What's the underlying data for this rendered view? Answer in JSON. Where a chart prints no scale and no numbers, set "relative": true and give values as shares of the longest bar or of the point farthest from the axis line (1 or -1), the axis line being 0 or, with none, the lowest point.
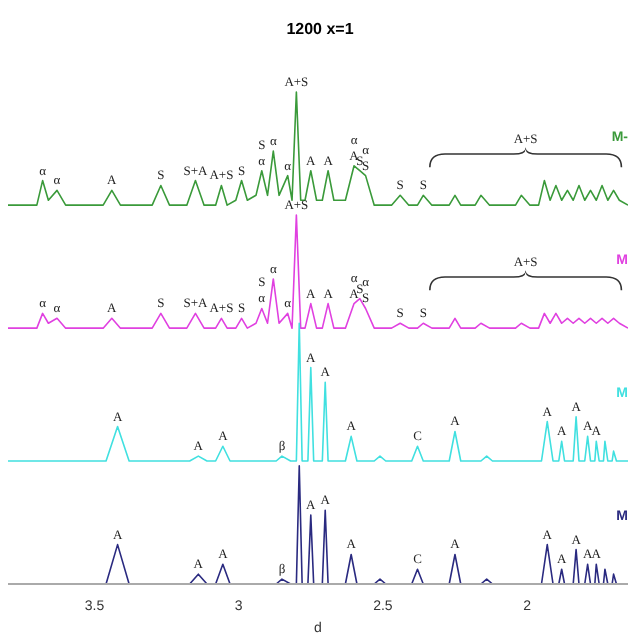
{
  "chart_data": {
    "type": "line",
    "title": "1200 x=1",
    "xlabel": "d",
    "relative": true,
    "xlim": [
      3.8,
      1.65
    ],
    "xticks": [
      3.5,
      3,
      2.5,
      2
    ],
    "marker": "none",
    "line_style": "solid",
    "series": [
      {
        "name": "M-",
        "color": "#3a9a3a",
        "x": [
          3.8,
          3.7,
          3.68,
          3.66,
          3.63,
          3.6,
          3.47,
          3.44,
          3.41,
          3.3,
          3.27,
          3.24,
          3.18,
          3.15,
          3.12,
          3.08,
          3.06,
          3.04,
          3.01,
          2.99,
          2.97,
          2.94,
          2.92,
          2.9,
          2.88,
          2.86,
          2.83,
          2.815,
          2.8,
          2.785,
          2.77,
          2.75,
          2.73,
          2.71,
          2.69,
          2.67,
          2.63,
          2.6,
          2.58,
          2.56,
          2.53,
          2.47,
          2.44,
          2.41,
          2.38,
          2.36,
          2.33,
          2.27,
          2.25,
          2.23,
          2.18,
          2.16,
          2.13,
          2.04,
          2.02,
          1.99,
          1.96,
          1.94,
          1.92,
          1.9,
          1.88,
          1.86,
          1.84,
          1.82,
          1.8,
          1.78,
          1.76,
          1.74,
          1.72,
          1.7,
          1.68,
          1.65
        ],
        "values": [
          0.77,
          0.77,
          0.82,
          0.78,
          0.8,
          0.77,
          0.77,
          0.8,
          0.77,
          0.77,
          0.81,
          0.77,
          0.77,
          0.82,
          0.77,
          0.77,
          0.81,
          0.77,
          0.78,
          0.82,
          0.78,
          0.79,
          0.84,
          0.79,
          0.88,
          0.79,
          0.83,
          0.78,
          1.0,
          0.78,
          0.78,
          0.84,
          0.78,
          0.78,
          0.84,
          0.78,
          0.78,
          0.85,
          0.84,
          0.83,
          0.77,
          0.77,
          0.79,
          0.77,
          0.77,
          0.79,
          0.77,
          0.77,
          0.79,
          0.77,
          0.77,
          0.79,
          0.77,
          0.77,
          0.79,
          0.77,
          0.77,
          0.82,
          0.78,
          0.81,
          0.78,
          0.8,
          0.78,
          0.81,
          0.78,
          0.8,
          0.78,
          0.81,
          0.78,
          0.8,
          0.78,
          0.77
        ]
      },
      {
        "name": "M",
        "color": "#e040e0",
        "x": [
          3.8,
          3.7,
          3.68,
          3.66,
          3.63,
          3.6,
          3.47,
          3.44,
          3.41,
          3.3,
          3.27,
          3.24,
          3.18,
          3.15,
          3.12,
          3.08,
          3.06,
          3.04,
          3.01,
          2.99,
          2.97,
          2.94,
          2.92,
          2.9,
          2.88,
          2.86,
          2.83,
          2.815,
          2.8,
          2.785,
          2.77,
          2.75,
          2.73,
          2.71,
          2.69,
          2.67,
          2.63,
          2.6,
          2.58,
          2.56,
          2.53,
          2.47,
          2.44,
          2.41,
          2.38,
          2.36,
          2.33,
          2.27,
          2.25,
          2.23,
          2.18,
          2.16,
          2.13,
          2.04,
          2.02,
          1.99,
          1.96,
          1.94,
          1.92,
          1.9,
          1.88,
          1.86,
          1.84,
          1.82,
          1.8,
          1.78,
          1.76,
          1.74,
          1.72,
          1.7,
          1.68,
          1.65
        ],
        "values": [
          0.52,
          0.52,
          0.55,
          0.53,
          0.54,
          0.52,
          0.52,
          0.54,
          0.52,
          0.52,
          0.55,
          0.52,
          0.52,
          0.55,
          0.52,
          0.52,
          0.54,
          0.52,
          0.52,
          0.54,
          0.52,
          0.53,
          0.56,
          0.53,
          0.62,
          0.53,
          0.55,
          0.52,
          0.75,
          0.52,
          0.52,
          0.57,
          0.52,
          0.52,
          0.57,
          0.52,
          0.52,
          0.57,
          0.58,
          0.56,
          0.52,
          0.52,
          0.53,
          0.52,
          0.52,
          0.53,
          0.52,
          0.52,
          0.54,
          0.52,
          0.52,
          0.53,
          0.52,
          0.52,
          0.53,
          0.52,
          0.52,
          0.55,
          0.53,
          0.55,
          0.53,
          0.54,
          0.53,
          0.54,
          0.53,
          0.54,
          0.53,
          0.54,
          0.53,
          0.54,
          0.53,
          0.52
        ]
      },
      {
        "name": "M",
        "color": "#40e0e0",
        "x": [
          3.8,
          3.46,
          3.42,
          3.38,
          3.17,
          3.14,
          3.11,
          3.08,
          3.055,
          3.03,
          2.87,
          2.85,
          2.82,
          2.8,
          2.79,
          2.78,
          2.76,
          2.75,
          2.74,
          2.71,
          2.7,
          2.69,
          2.63,
          2.61,
          2.59,
          2.53,
          2.51,
          2.49,
          2.4,
          2.38,
          2.36,
          2.27,
          2.25,
          2.23,
          2.16,
          2.14,
          2.12,
          1.95,
          1.93,
          1.91,
          1.89,
          1.88,
          1.87,
          1.84,
          1.83,
          1.82,
          1.8,
          1.79,
          1.78,
          1.765,
          1.76,
          1.75,
          1.735,
          1.73,
          1.72,
          1.705,
          1.7,
          1.69,
          1.65
        ],
        "values": [
          0.25,
          0.25,
          0.32,
          0.25,
          0.25,
          0.26,
          0.25,
          0.25,
          0.28,
          0.25,
          0.25,
          0.26,
          0.25,
          0.25,
          0.53,
          0.25,
          0.25,
          0.44,
          0.25,
          0.25,
          0.41,
          0.25,
          0.25,
          0.3,
          0.25,
          0.25,
          0.26,
          0.25,
          0.25,
          0.28,
          0.25,
          0.25,
          0.31,
          0.25,
          0.25,
          0.26,
          0.25,
          0.25,
          0.33,
          0.25,
          0.25,
          0.29,
          0.25,
          0.25,
          0.34,
          0.25,
          0.25,
          0.3,
          0.25,
          0.25,
          0.29,
          0.25,
          0.25,
          0.29,
          0.25,
          0.25,
          0.27,
          0.25,
          0.25
        ]
      },
      {
        "name": "M",
        "color": "#2a2a80",
        "x": [
          3.8,
          3.46,
          3.42,
          3.38,
          3.17,
          3.14,
          3.11,
          3.08,
          3.055,
          3.03,
          2.87,
          2.85,
          2.82,
          2.8,
          2.79,
          2.78,
          2.76,
          2.75,
          2.74,
          2.71,
          2.7,
          2.69,
          2.63,
          2.61,
          2.59,
          2.53,
          2.51,
          2.49,
          2.4,
          2.38,
          2.36,
          2.27,
          2.25,
          2.23,
          2.16,
          2.14,
          2.12,
          1.95,
          1.93,
          1.91,
          1.89,
          1.88,
          1.87,
          1.84,
          1.83,
          1.82,
          1.8,
          1.79,
          1.78,
          1.765,
          1.76,
          1.75,
          1.735,
          1.73,
          1.72,
          1.705,
          1.7,
          1.69,
          1.65
        ],
        "values": [
          0,
          0,
          0.08,
          0,
          0,
          0.02,
          0,
          0,
          0.04,
          0,
          0,
          0.01,
          0,
          0,
          0.24,
          0,
          0,
          0.14,
          0,
          0,
          0.15,
          0,
          0,
          0.06,
          0,
          0,
          0.01,
          0,
          0,
          0.03,
          0,
          0,
          0.06,
          0,
          0,
          0.01,
          0,
          0,
          0.08,
          0,
          0,
          0.03,
          0,
          0,
          0.07,
          0,
          0,
          0.04,
          0,
          0,
          0.04,
          0,
          0,
          0.03,
          0,
          0,
          0.02,
          0,
          0
        ]
      }
    ],
    "annotations": [
      "A+S",
      "A+S",
      {
        "text": "α",
        "x": 3.68,
        "y": 0.82
      },
      {
        "text": "α",
        "x": 3.63,
        "y": 0.8
      },
      {
        "text": "A",
        "x": 3.44,
        "y": 0.8
      },
      {
        "text": "S",
        "x": 3.27,
        "y": 0.81
      },
      {
        "text": "S+A",
        "x": 3.15,
        "y": 0.82
      },
      {
        "text": "A+S",
        "x": 3.06,
        "y": 0.81
      },
      {
        "text": "S",
        "x": 2.99,
        "y": 0.82
      },
      {
        "text": "α",
        "x": 2.92,
        "y": 0.84
      },
      {
        "text": "S",
        "x": 2.92,
        "y": 0.84
      },
      {
        "text": "α",
        "x": 2.88,
        "y": 0.88
      },
      {
        "text": "α",
        "x": 2.83,
        "y": 0.83
      },
      {
        "text": "A+S",
        "x": 2.8,
        "y": 1.0
      },
      {
        "text": "A",
        "x": 2.75,
        "y": 0.84
      },
      {
        "text": "A",
        "x": 2.69,
        "y": 0.84
      },
      {
        "text": "A",
        "x": 2.6,
        "y": 0.85
      },
      {
        "text": "α",
        "x": 2.6,
        "y": 0.85
      },
      {
        "text": "S",
        "x": 2.58,
        "y": 0.84
      },
      {
        "text": "S",
        "x": 2.56,
        "y": 0.83
      },
      {
        "text": "α",
        "x": 2.56,
        "y": 0.83
      },
      {
        "text": "S",
        "x": 2.44,
        "y": 0.79
      },
      {
        "text": "S",
        "x": 2.36,
        "y": 0.79
      },
      {
        "text": "α",
        "x": 3.68,
        "y": 0.55
      },
      {
        "text": "α",
        "x": 3.63,
        "y": 0.54
      },
      {
        "text": "A",
        "x": 3.44,
        "y": 0.54
      },
      {
        "text": "S",
        "x": 3.27,
        "y": 0.55
      },
      {
        "text": "S+A",
        "x": 3.15,
        "y": 0.55
      },
      {
        "text": "A+S",
        "x": 3.06,
        "y": 0.54
      },
      {
        "text": "S",
        "x": 2.99,
        "y": 0.54
      },
      {
        "text": "α",
        "x": 2.92,
        "y": 0.56
      },
      {
        "text": "S",
        "x": 2.92,
        "y": 0.56
      },
      {
        "text": "α",
        "x": 2.88,
        "y": 0.62
      },
      {
        "text": "α",
        "x": 2.83,
        "y": 0.55
      },
      {
        "text": "A+S",
        "x": 2.8,
        "y": 0.75
      },
      {
        "text": "A",
        "x": 2.75,
        "y": 0.57
      },
      {
        "text": "A",
        "x": 2.69,
        "y": 0.57
      },
      {
        "text": "A",
        "x": 2.6,
        "y": 0.57
      },
      {
        "text": "α",
        "x": 2.6,
        "y": 0.57
      },
      {
        "text": "S",
        "x": 2.58,
        "y": 0.58
      },
      {
        "text": "S",
        "x": 2.56,
        "y": 0.56
      },
      {
        "text": "α",
        "x": 2.56,
        "y": 0.56
      },
      {
        "text": "S",
        "x": 2.44,
        "y": 0.53
      },
      {
        "text": "S",
        "x": 2.36,
        "y": 0.53
      },
      {
        "text": "A",
        "x": 3.42,
        "y": 0.32
      },
      {
        "text": "A",
        "x": 3.14,
        "y": 0.26
      },
      {
        "text": "A",
        "x": 3.055,
        "y": 0.28
      },
      {
        "text": "β",
        "x": 2.85,
        "y": 0.26
      },
      {
        "text": "A",
        "x": 2.75,
        "y": 0.44
      },
      {
        "text": "A",
        "x": 2.7,
        "y": 0.41
      },
      {
        "text": "A",
        "x": 2.61,
        "y": 0.3
      },
      {
        "text": "C",
        "x": 2.38,
        "y": 0.28
      },
      {
        "text": "A",
        "x": 2.25,
        "y": 0.31
      },
      {
        "text": "A",
        "x": 1.93,
        "y": 0.33
      },
      {
        "text": "A",
        "x": 1.88,
        "y": 0.29
      },
      {
        "text": "A",
        "x": 1.83,
        "y": 0.34
      },
      {
        "text": "A",
        "x": 1.79,
        "y": 0.3
      },
      {
        "text": "A",
        "x": 1.76,
        "y": 0.29
      },
      {
        "text": "A",
        "x": 3.42,
        "y": 0.08
      },
      {
        "text": "A",
        "x": 3.14,
        "y": 0.02
      },
      {
        "text": "A",
        "x": 3.055,
        "y": 0.04
      },
      {
        "text": "β",
        "x": 2.85,
        "y": 0.01
      },
      {
        "text": "A",
        "x": 2.75,
        "y": 0.14
      },
      {
        "text": "A",
        "x": 2.7,
        "y": 0.15
      },
      {
        "text": "A",
        "x": 2.61,
        "y": 0.06
      },
      {
        "text": "C",
        "x": 2.38,
        "y": 0.03
      },
      {
        "text": "A",
        "x": 2.25,
        "y": 0.06
      },
      {
        "text": "A",
        "x": 1.93,
        "y": 0.08
      },
      {
        "text": "A",
        "x": 1.88,
        "y": 0.03
      },
      {
        "text": "A",
        "x": 1.83,
        "y": 0.07
      },
      {
        "text": "A",
        "x": 1.79,
        "y": 0.04
      },
      {
        "text": "A",
        "x": 1.76,
        "y": 0.04
      }
    ]
  }
}
